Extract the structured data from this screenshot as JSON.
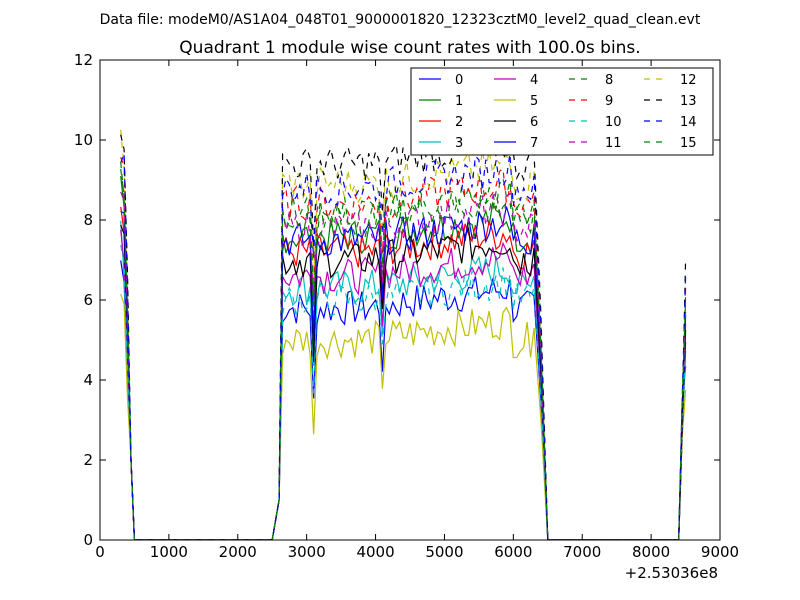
{
  "suptitle": "Data file: modeM0/AS1A04_048T01_9000001820_12323cztM0_level2_quad_clean.evt",
  "chart_data": {
    "type": "line",
    "title": "Quadrant 1 module wise count rates with 100.0s bins.",
    "xlabel": "",
    "ylabel": "",
    "x_offset_label": "+2.53036e8",
    "xlim": [
      0,
      9000
    ],
    "ylim": [
      0,
      12
    ],
    "xticks": [
      0,
      1000,
      2000,
      3000,
      4000,
      5000,
      6000,
      7000,
      8000,
      9000
    ],
    "yticks": [
      0,
      2,
      4,
      6,
      8,
      10,
      12
    ],
    "legend_location": "top-right",
    "legend_columns": 4,
    "series": [
      {
        "name": "0",
        "color": "#0000ff",
        "dash": "solid",
        "base": 5.8
      },
      {
        "name": "1",
        "color": "#008000",
        "dash": "solid",
        "base": 7.6
      },
      {
        "name": "2",
        "color": "#ff0000",
        "dash": "solid",
        "base": 7.2
      },
      {
        "name": "3",
        "color": "#00bfbf",
        "dash": "solid",
        "base": 6.3
      },
      {
        "name": "4",
        "color": "#bf00bf",
        "dash": "solid",
        "base": 6.6
      },
      {
        "name": "5",
        "color": "#bfbf00",
        "dash": "solid",
        "base": 5.0
      },
      {
        "name": "6",
        "color": "#000000",
        "dash": "solid",
        "base": 7.0
      },
      {
        "name": "7",
        "color": "#0000ff",
        "dash": "solid",
        "base": 7.5
      },
      {
        "name": "8",
        "color": "#008000",
        "dash": "dashed",
        "base": 8.2
      },
      {
        "name": "9",
        "color": "#ff0000",
        "dash": "dashed",
        "base": 8.4
      },
      {
        "name": "10",
        "color": "#00bfbf",
        "dash": "dashed",
        "base": 6.0
      },
      {
        "name": "11",
        "color": "#bf00bf",
        "dash": "dashed",
        "base": 7.8
      },
      {
        "name": "12",
        "color": "#bfbf00",
        "dash": "dashed",
        "base": 8.9
      },
      {
        "name": "13",
        "color": "#000000",
        "dash": "dashed",
        "base": 9.4
      },
      {
        "name": "14",
        "color": "#0000ff",
        "dash": "dashed",
        "base": 8.8
      },
      {
        "name": "15",
        "color": "#008000",
        "dash": "dashed",
        "base": 8.0
      }
    ]
  }
}
